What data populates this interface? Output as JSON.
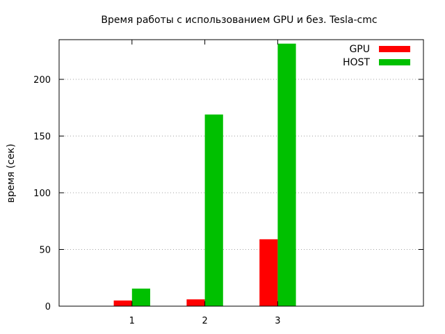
{
  "chart_data": {
    "type": "bar",
    "title": "Время работы с использованием GPU и без. Tesla-cmc",
    "xlabel": "",
    "ylabel": "время (сек)",
    "categories": [
      "1",
      "2",
      "3"
    ],
    "series": [
      {
        "name": "GPU",
        "color": "#ff0000",
        "values": [
          5,
          6,
          59
        ]
      },
      {
        "name": "HOST",
        "color": "#00c000",
        "values": [
          15.5,
          169,
          231.5
        ]
      }
    ],
    "ylim": [
      0,
      235
    ],
    "yticks": [
      0,
      50,
      100,
      150,
      200
    ],
    "xlim": [
      0,
      5
    ],
    "grid": true,
    "legend_position": "top-right"
  }
}
